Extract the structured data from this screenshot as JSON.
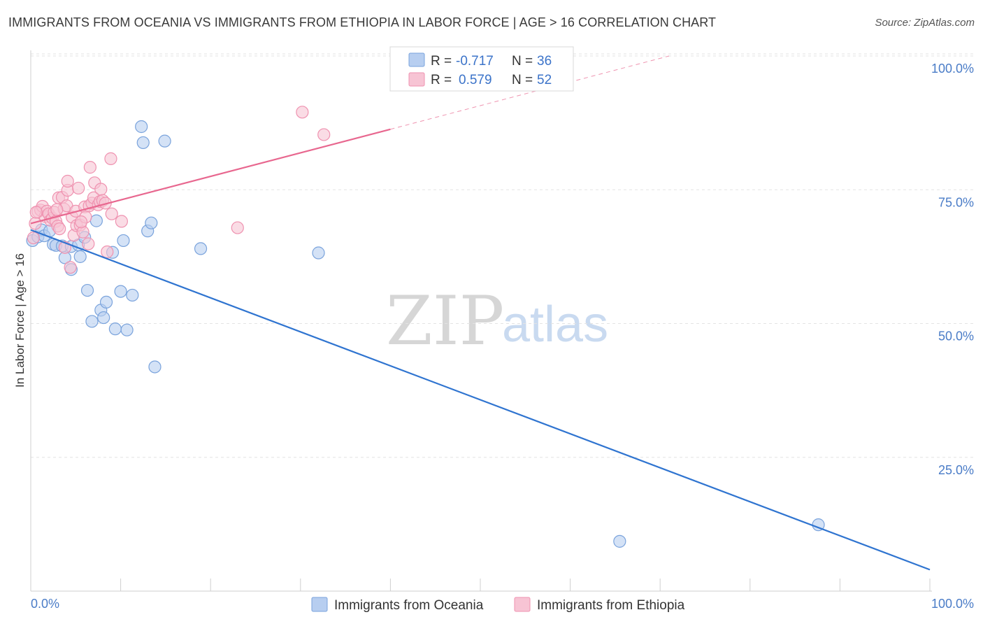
{
  "title": "IMMIGRANTS FROM OCEANIA VS IMMIGRANTS FROM ETHIOPIA IN LABOR FORCE | AGE > 16 CORRELATION CHART",
  "source": "Source: ZipAtlas.com",
  "watermark": {
    "zip": "ZIP",
    "atlas": "atlas"
  },
  "colors": {
    "blue_fill": "#b7cef0",
    "blue_stroke": "#7aa3dc",
    "blue_line": "#2f74d0",
    "pink_fill": "#f7c4d4",
    "pink_stroke": "#ef92b0",
    "pink_line": "#e8678f"
  },
  "legend": {
    "r_label": "R =",
    "n_label": "N =",
    "blue_r": "-0.717",
    "blue_n": "36",
    "pink_r": "0.579",
    "pink_n": "52"
  },
  "bottom_legend": {
    "blue": "Immigrants from Oceania",
    "pink": "Immigrants from Ethiopia"
  },
  "chart_data": {
    "type": "scatter",
    "title": "IMMIGRANTS FROM OCEANIA VS IMMIGRANTS FROM ETHIOPIA IN LABOR FORCE | AGE > 16 CORRELATION CHART",
    "xlabel": "",
    "ylabel": "In Labor Force | Age > 16",
    "xlim": [
      0,
      100
    ],
    "ylim": [
      0,
      100
    ],
    "x_tick_labels": [
      "0.0%",
      "100.0%"
    ],
    "y_ticks": [
      25,
      50,
      75,
      100
    ],
    "y_tick_labels": [
      "25.0%",
      "50.0%",
      "75.0%",
      "100.0%"
    ],
    "series": [
      {
        "name": "Immigrants from Oceania",
        "color": "blue",
        "points": [
          [
            0.2,
            65.5
          ],
          [
            0.8,
            66.2
          ],
          [
            1.2,
            67.5
          ],
          [
            1.5,
            66.4
          ],
          [
            2.1,
            67.3
          ],
          [
            2.5,
            64.8
          ],
          [
            2.8,
            64.6
          ],
          [
            3.5,
            64.5
          ],
          [
            3.8,
            62.3
          ],
          [
            4.5,
            64.4
          ],
          [
            4.5,
            60.1
          ],
          [
            5.3,
            64.7
          ],
          [
            5.5,
            62.5
          ],
          [
            6.0,
            66.1
          ],
          [
            6.3,
            56.2
          ],
          [
            6.8,
            50.4
          ],
          [
            7.3,
            69.2
          ],
          [
            7.8,
            52.5
          ],
          [
            8.1,
            51.1
          ],
          [
            8.4,
            54.0
          ],
          [
            9.1,
            63.3
          ],
          [
            9.4,
            49.0
          ],
          [
            10.0,
            56.0
          ],
          [
            10.3,
            65.5
          ],
          [
            10.7,
            48.8
          ],
          [
            11.3,
            55.3
          ],
          [
            12.3,
            86.8
          ],
          [
            12.5,
            83.8
          ],
          [
            13.0,
            67.3
          ],
          [
            13.4,
            68.8
          ],
          [
            13.8,
            41.9
          ],
          [
            14.9,
            84.1
          ],
          [
            18.9,
            64.0
          ],
          [
            32.0,
            63.2
          ],
          [
            65.5,
            9.3
          ],
          [
            87.6,
            12.4
          ]
        ]
      },
      {
        "name": "Immigrants from Ethiopia",
        "color": "pink",
        "points": [
          [
            0.3,
            66.0
          ],
          [
            0.5,
            68.7
          ],
          [
            0.8,
            70.9
          ],
          [
            1.1,
            71.2
          ],
          [
            1.3,
            71.9
          ],
          [
            1.6,
            70.0
          ],
          [
            1.8,
            71.0
          ],
          [
            2.0,
            70.5
          ],
          [
            2.2,
            69.3
          ],
          [
            2.4,
            69.7
          ],
          [
            2.6,
            70.8
          ],
          [
            2.8,
            69.1
          ],
          [
            3.0,
            68.2
          ],
          [
            3.1,
            73.5
          ],
          [
            3.2,
            67.7
          ],
          [
            3.5,
            73.6
          ],
          [
            3.7,
            71.4
          ],
          [
            3.8,
            64.2
          ],
          [
            4.0,
            72.0
          ],
          [
            4.1,
            74.9
          ],
          [
            4.1,
            76.6
          ],
          [
            4.4,
            60.5
          ],
          [
            4.6,
            69.9
          ],
          [
            4.8,
            66.5
          ],
          [
            5.0,
            71.0
          ],
          [
            5.1,
            68.3
          ],
          [
            5.3,
            75.3
          ],
          [
            5.5,
            68.4
          ],
          [
            5.8,
            67.1
          ],
          [
            6.0,
            71.8
          ],
          [
            6.1,
            69.9
          ],
          [
            6.4,
            64.9
          ],
          [
            6.5,
            72.0
          ],
          [
            6.6,
            79.2
          ],
          [
            6.8,
            72.5
          ],
          [
            7.0,
            73.5
          ],
          [
            7.1,
            76.3
          ],
          [
            7.5,
            72.2
          ],
          [
            7.7,
            72.8
          ],
          [
            7.8,
            75.1
          ],
          [
            8.0,
            73.0
          ],
          [
            8.3,
            72.5
          ],
          [
            8.5,
            63.4
          ],
          [
            8.9,
            80.8
          ],
          [
            9.0,
            70.5
          ],
          [
            10.1,
            69.1
          ],
          [
            23.0,
            67.9
          ],
          [
            30.2,
            89.5
          ],
          [
            32.6,
            85.3
          ],
          [
            0.6,
            70.8
          ],
          [
            2.9,
            71.3
          ],
          [
            5.6,
            69.0
          ]
        ]
      }
    ],
    "trendlines": [
      {
        "series": "Immigrants from Oceania",
        "from": [
          0,
          67.5
        ],
        "to": [
          100,
          4.0
        ],
        "style": "solid"
      },
      {
        "series": "Immigrants from Ethiopia",
        "from": [
          0,
          68.7
        ],
        "to": [
          40,
          86.3
        ],
        "style": "solid"
      },
      {
        "series": "Immigrants from Ethiopia",
        "from": [
          40,
          86.3
        ],
        "to": [
          71,
          100.0
        ],
        "style": "dashed"
      }
    ]
  }
}
